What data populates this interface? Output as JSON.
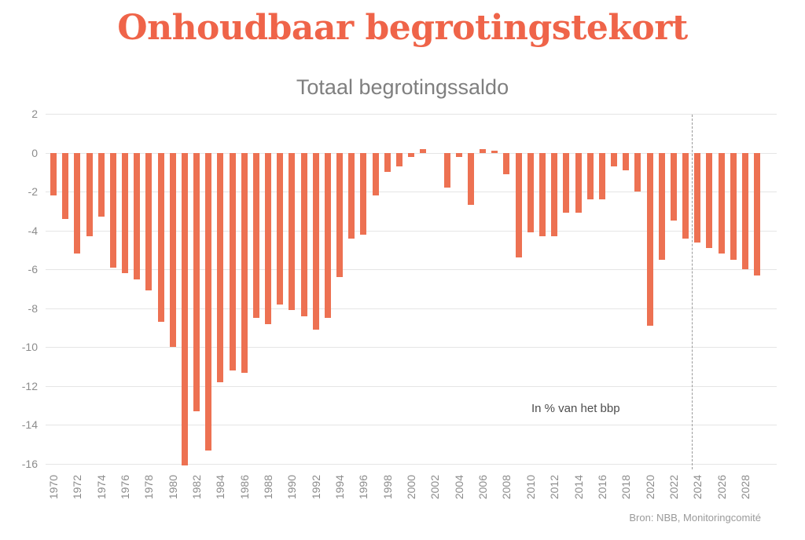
{
  "chart_data": {
    "type": "bar",
    "title": "Onhoudbaar begrotingstekort",
    "subtitle": "Totaal begrotingssaldo",
    "annotation": "In % van het bbp",
    "source": "Bron: NBB, Monitoringcomité",
    "ylabel": "",
    "xlabel": "",
    "ylim": [
      -16,
      2
    ],
    "yticks": [
      2,
      0,
      -2,
      -4,
      -6,
      -8,
      -10,
      -12,
      -14,
      -16
    ],
    "xticks": [
      1970,
      1972,
      1974,
      1976,
      1978,
      1980,
      1982,
      1984,
      1986,
      1988,
      1990,
      1992,
      1994,
      1996,
      1998,
      2000,
      2002,
      2004,
      2006,
      2008,
      2010,
      2012,
      2014,
      2016,
      2018,
      2020,
      2022,
      2024,
      2026,
      2028
    ],
    "years": [
      1970,
      1971,
      1972,
      1973,
      1974,
      1975,
      1976,
      1977,
      1978,
      1979,
      1980,
      1981,
      1982,
      1983,
      1984,
      1985,
      1986,
      1987,
      1988,
      1989,
      1990,
      1991,
      1992,
      1993,
      1994,
      1995,
      1996,
      1997,
      1998,
      1999,
      2000,
      2001,
      2002,
      2003,
      2004,
      2005,
      2006,
      2007,
      2008,
      2009,
      2010,
      2011,
      2012,
      2013,
      2014,
      2015,
      2016,
      2017,
      2018,
      2019,
      2020,
      2021,
      2022,
      2023,
      2024,
      2025,
      2026,
      2027,
      2028,
      2029
    ],
    "values": [
      -2.2,
      -3.4,
      -5.2,
      -4.3,
      -3.3,
      -5.9,
      -6.2,
      -6.5,
      -7.1,
      -8.7,
      -10.0,
      -16.1,
      -13.3,
      -15.3,
      -11.8,
      -11.2,
      -11.3,
      -8.5,
      -8.8,
      -7.8,
      -8.1,
      -8.4,
      -9.1,
      -8.5,
      -6.4,
      -4.4,
      -4.2,
      -2.2,
      -1.0,
      -0.7,
      -0.2,
      0.2,
      0.0,
      -1.8,
      -0.2,
      -2.7,
      0.2,
      0.1,
      -1.1,
      -5.4,
      -4.1,
      -4.3,
      -4.3,
      -3.1,
      -3.1,
      -2.4,
      -2.4,
      -0.7,
      -0.9,
      -2.0,
      -8.9,
      -5.5,
      -3.5,
      -4.4,
      -4.6,
      -4.9,
      -5.2,
      -5.5,
      -6.0,
      -6.3
    ],
    "forecast_start_year": 2024,
    "grid": true,
    "legend": "none",
    "colors": {
      "bar": "#ED7152",
      "title": "#EF6449",
      "grid": "#e5e5e5",
      "axis_text": "#8c8c8c"
    }
  }
}
